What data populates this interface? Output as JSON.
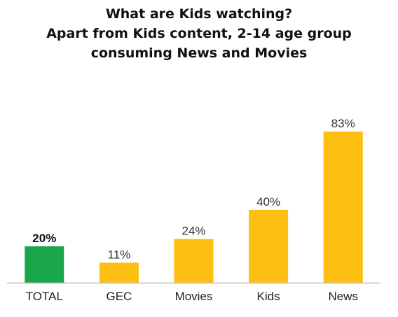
{
  "chart_data": {
    "type": "bar",
    "title_lines": [
      "What are Kids watching?",
      "Apart from Kids content, 2-14 age group",
      "consuming News and Movies"
    ],
    "categories": [
      "TOTAL",
      "GEC",
      "Movies",
      "Kids",
      "News"
    ],
    "values": [
      20,
      11,
      24,
      40,
      83
    ],
    "data_labels": [
      "20%",
      "11%",
      "24%",
      "40%",
      "83%"
    ],
    "bar_colors": [
      "#1aa64a",
      "#fdbf12",
      "#fdbf12",
      "#fdbf12",
      "#fdbf12"
    ],
    "highlight_index": 0,
    "ylim": [
      0,
      83
    ],
    "grid": false,
    "legend": "none",
    "baseline_color": "#bfbfbf"
  }
}
